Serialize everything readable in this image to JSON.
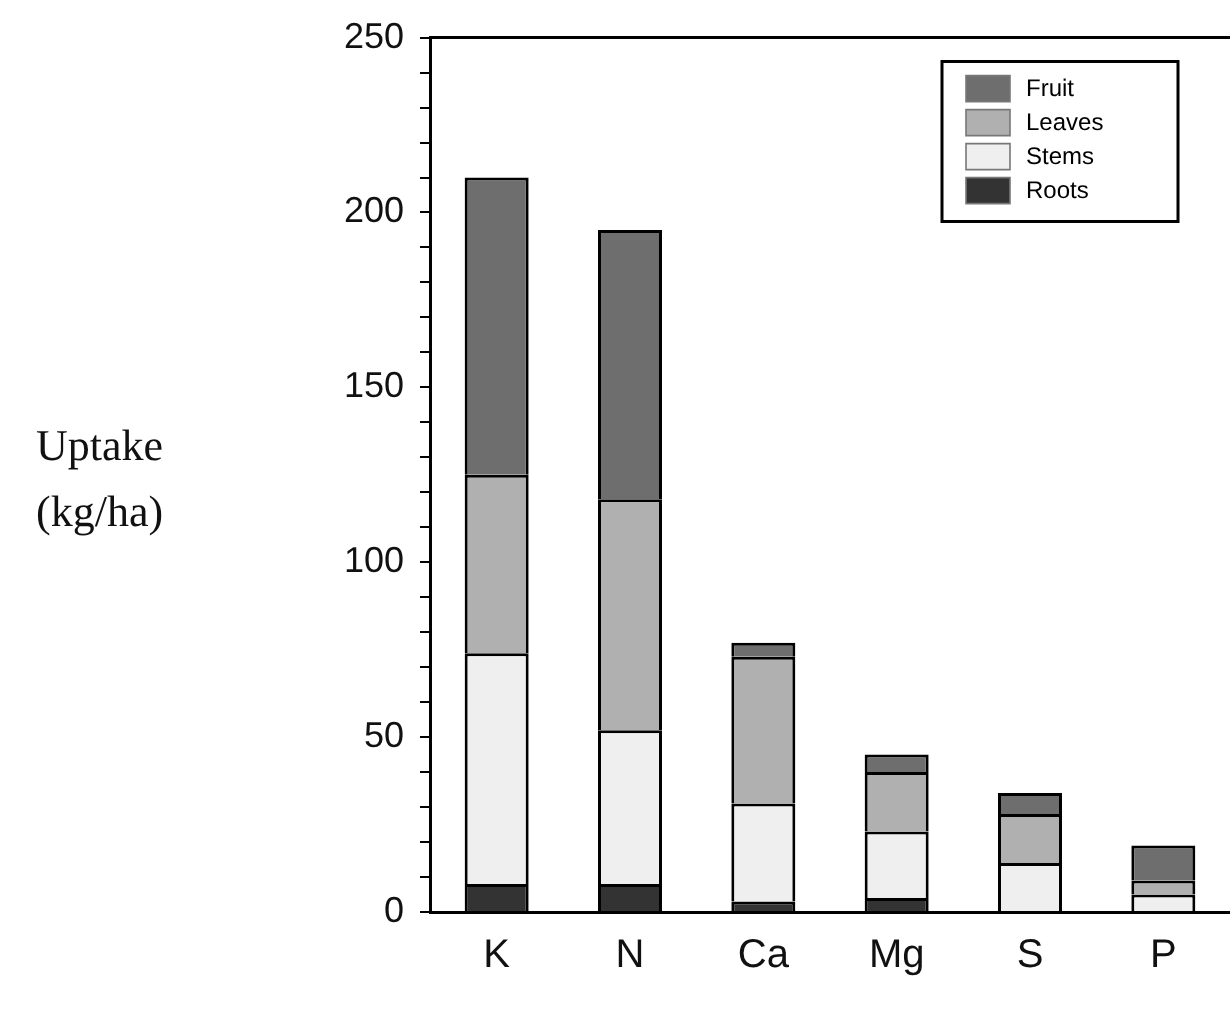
{
  "chart_data": {
    "type": "bar",
    "stacked": true,
    "ylabel": "Uptake (kg/ha)",
    "categories": [
      "K",
      "N",
      "Ca",
      "Mg",
      "S",
      "P"
    ],
    "series": [
      {
        "name": "Roots",
        "color": "#333333",
        "values": [
          8,
          8,
          3,
          4,
          0,
          0
        ]
      },
      {
        "name": "Stems",
        "color": "#efefef",
        "values": [
          66,
          44,
          28,
          19,
          14,
          5
        ]
      },
      {
        "name": "Leaves",
        "color": "#b0b0b0",
        "values": [
          51,
          66,
          42,
          17,
          14,
          4
        ]
      },
      {
        "name": "Fruit",
        "color": "#6e6e6e",
        "values": [
          85,
          77,
          4,
          5,
          6,
          10
        ]
      }
    ],
    "ylim": [
      0,
      250
    ],
    "yticks": [
      0,
      {
        "value": 10,
        "label": null
      },
      {
        "value": 20,
        "label": null
      },
      {
        "value": 30,
        "label": null
      },
      {
        "value": 40,
        "label": null
      },
      50,
      {
        "value": 60,
        "label": null
      },
      {
        "value": 70,
        "label": null
      },
      {
        "value": 80,
        "label": null
      },
      {
        "value": 90,
        "label": null
      },
      100,
      {
        "value": 110,
        "label": null
      },
      {
        "value": 120,
        "label": null
      },
      {
        "value": 130,
        "label": null
      },
      {
        "value": 140,
        "label": null
      },
      150,
      {
        "value": 160,
        "label": null
      },
      {
        "value": 170,
        "label": null
      },
      {
        "value": 180,
        "label": null
      },
      {
        "value": 190,
        "label": null
      },
      200,
      {
        "value": 210,
        "label": null
      },
      {
        "value": 220,
        "label": null
      },
      {
        "value": 230,
        "label": null
      },
      {
        "value": 240,
        "label": null
      },
      250
    ],
    "grid": false,
    "legend": "top right"
  }
}
